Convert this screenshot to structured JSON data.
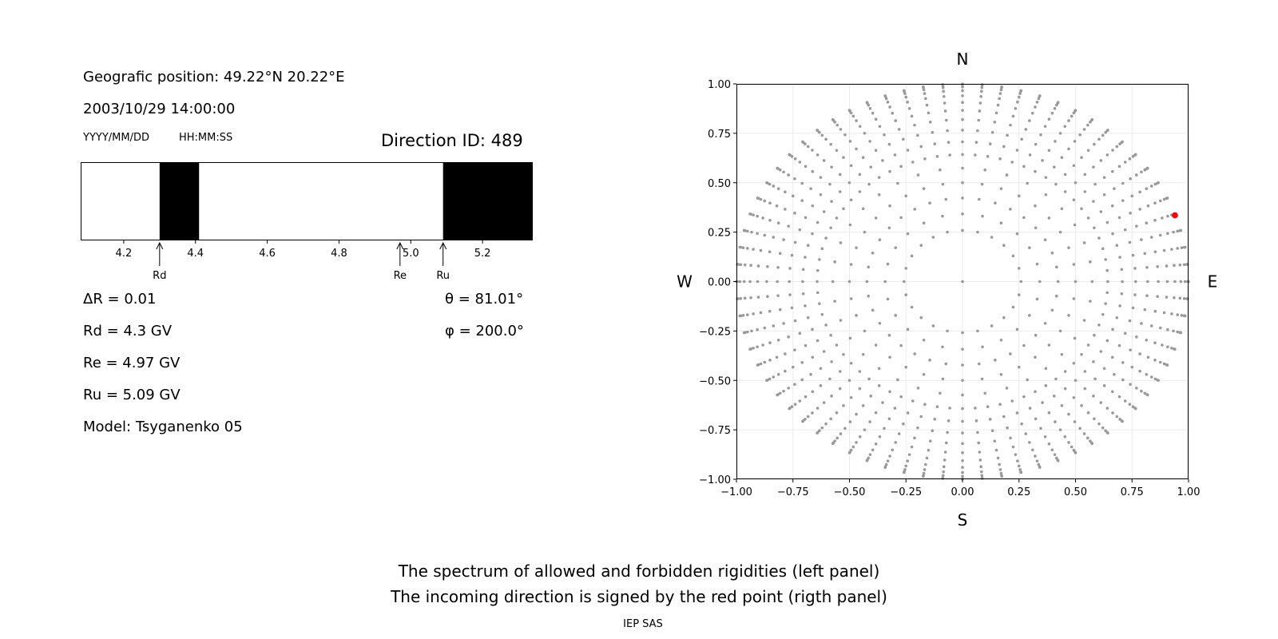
{
  "left_panel": {
    "position_text": "Geografic position: 49.22°N 20.22°E",
    "datetime_text": "2003/10/29 14:00:00",
    "date_format_label": "YYYY/MM/DD",
    "time_format_label": "HH:MM:SS",
    "direction_text": "Direction ID: 489",
    "delta_r_text": "ΔR = 0.01",
    "rd_text": "Rd = 4.3 GV",
    "re_text": "Re = 4.97 GV",
    "ru_text": "Ru = 5.09 GV",
    "model_text": "Model: Tsyganenko 05",
    "theta_text": "θ = 81.01°",
    "phi_text": "φ = 200.0°"
  },
  "chart_data": [
    {
      "type": "bar",
      "description_kind": "rigidity spectrum (allowed=white, forbidden=black)",
      "xlim": [
        4.08,
        5.34
      ],
      "x_ticks": [
        4.2,
        4.4,
        4.6,
        4.8,
        5.0,
        5.2
      ],
      "x_tick_labels": [
        "4.2",
        "4.4",
        "4.6",
        "4.8",
        "5.0",
        "5.2"
      ],
      "forbidden_bands": [
        [
          4.3,
          4.41
        ],
        [
          5.09,
          5.34
        ]
      ],
      "markers": [
        {
          "label": "Rd",
          "value": 4.3
        },
        {
          "label": "Re",
          "value": 4.97
        },
        {
          "label": "Ru",
          "value": 5.09
        }
      ],
      "colors": {
        "forbidden": "#000000",
        "allowed": "#ffffff"
      }
    },
    {
      "type": "scatter",
      "xlim": [
        -1.0,
        1.0
      ],
      "ylim": [
        -1.0,
        1.0
      ],
      "x_ticks": [
        -1.0,
        -0.75,
        -0.5,
        -0.25,
        0.0,
        0.25,
        0.5,
        0.75,
        1.0
      ],
      "x_tick_labels": [
        "−1.00",
        "−0.75",
        "−0.50",
        "−0.25",
        "0.00",
        "0.25",
        "0.50",
        "0.75",
        "1.00"
      ],
      "y_ticks": [
        1.0,
        0.75,
        0.5,
        0.25,
        0.0,
        -0.25,
        -0.5,
        -0.75,
        -1.0
      ],
      "y_tick_labels": [
        "1.00",
        "0.75",
        "0.50",
        "0.25",
        "0.00",
        "−0.25",
        "−0.50",
        "−0.75",
        "−1.00"
      ],
      "grid": true,
      "compass": {
        "north": "N",
        "south": "S",
        "west": "W",
        "east": "E"
      },
      "direction_grid": {
        "center": [
          0.0,
          0.0
        ],
        "theta_step_deg": 5,
        "theta_max_deg": 90,
        "rings": [
          {
            "from_theta_deg": 15,
            "azimuth_step_deg": 15
          },
          {
            "from_theta_deg": 25,
            "azimuth_step_deg": 10
          },
          {
            "from_theta_deg": 40,
            "azimuth_step_deg": 5
          }
        ]
      },
      "highlight_point": {
        "x": 0.94,
        "y": 0.335
      },
      "colors": {
        "points": "#999999",
        "highlight": "#ff0000"
      }
    }
  ],
  "footer": {
    "line1": "The spectrum of allowed and forbidden rigidities (left panel)",
    "line2": "The incoming direction is signed by the red point (rigth panel)",
    "credit": "IEP SAS"
  }
}
